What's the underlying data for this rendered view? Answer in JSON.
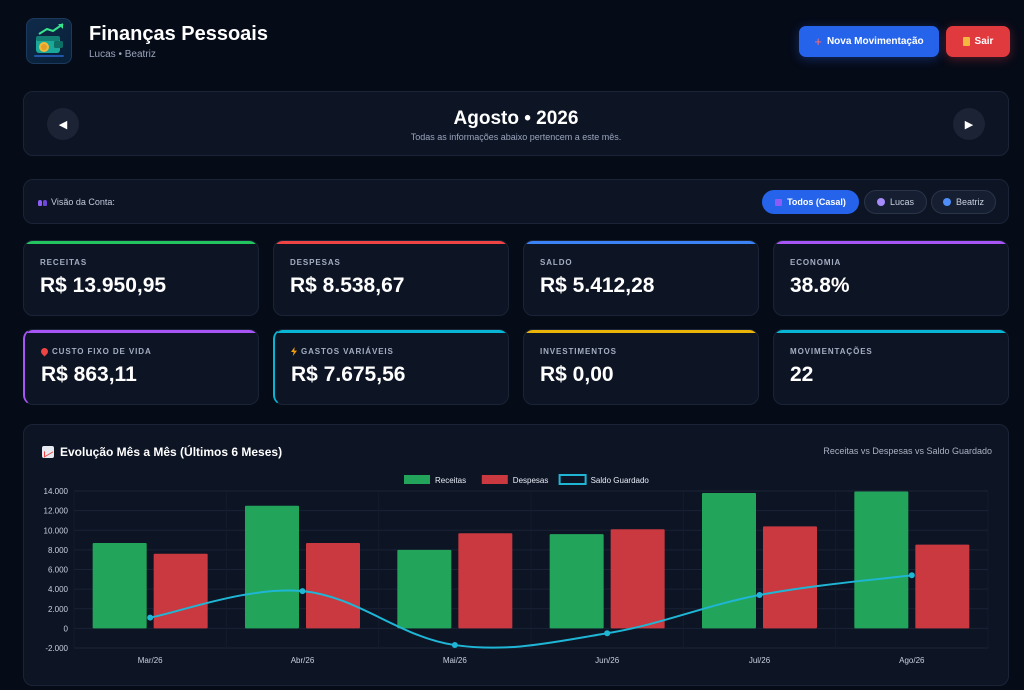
{
  "header": {
    "title": "Finanças Pessoais",
    "subtitle": "Lucas • Beatriz",
    "new_button": "Nova Movimentação",
    "exit_button": "Sair"
  },
  "month": {
    "title": "Agosto • 2026",
    "subtitle": "Todas as informações abaixo pertencem a este mês."
  },
  "account_view": {
    "label": "Visão da Conta:",
    "options": [
      "Todos (Casal)",
      "Lucas",
      "Beatriz"
    ],
    "selected": "Todos (Casal)"
  },
  "cards": [
    {
      "label": "RECEITAS",
      "value": "R$ 13.950,95",
      "accent": "#22c55e"
    },
    {
      "label": "DESPESAS",
      "value": "R$ 8.538,67",
      "accent": "#ef4444"
    },
    {
      "label": "SALDO",
      "value": "R$ 5.412,28",
      "accent": "#3b82f6"
    },
    {
      "label": "ECONOMIA",
      "value": "38.8%",
      "accent": "#a855f7"
    },
    {
      "label": "CUSTO FIXO DE VIDA",
      "value": "R$ 863,11",
      "accent": "#a855f7",
      "icon": "pin-icon"
    },
    {
      "label": "GASTOS VARIÁVEIS",
      "value": "R$ 7.675,56",
      "accent": "#06b6d4",
      "icon": "bolt-icon"
    },
    {
      "label": "INVESTIMENTOS",
      "value": "R$ 0,00",
      "accent": "#eab308"
    },
    {
      "label": "MOVIMENTAÇÕES",
      "value": "22",
      "accent": "#06b6d4"
    }
  ],
  "chart": {
    "title": "Evolução Mês a Mês (Últimos 6 Meses)",
    "note": "Receitas vs Despesas vs Saldo Guardado"
  },
  "chart_data": {
    "type": "bar",
    "categories": [
      "Mar/26",
      "Abr/26",
      "Mai/26",
      "Jun/26",
      "Jul/26",
      "Ago/26"
    ],
    "series": [
      {
        "name": "Receitas",
        "type": "bar",
        "color": "#22a55a",
        "values": [
          8700,
          12500,
          8000,
          9600,
          13800,
          13951
        ]
      },
      {
        "name": "Despesas",
        "type": "bar",
        "color": "#c9393f",
        "values": [
          7600,
          8700,
          9700,
          10100,
          10400,
          8539
        ]
      },
      {
        "name": "Saldo Guardado",
        "type": "line",
        "color": "#1fb6d6",
        "values": [
          1100,
          3800,
          -1700,
          -500,
          3400,
          5412
        ]
      }
    ],
    "ylim": [
      -2000,
      14000
    ],
    "yticks": [
      "-2.000",
      "0",
      "2.000",
      "4.000",
      "6.000",
      "8.000",
      "10.000",
      "12.000",
      "14.000"
    ],
    "legend_position": "top-center",
    "grid": true
  },
  "colors": {
    "background": "#060b18",
    "panel": "#0d1424",
    "primary": "#2563eb",
    "danger": "#e0393e"
  }
}
